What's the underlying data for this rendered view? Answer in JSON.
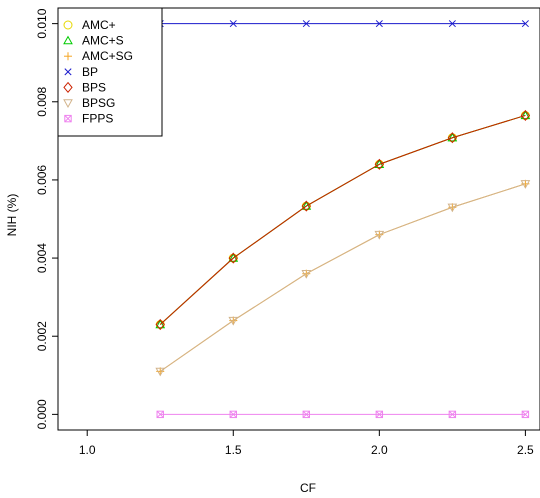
{
  "chart_data": {
    "type": "line",
    "xlabel": "CF",
    "ylabel": "NIH (%)",
    "xlim": [
      0.9,
      2.55
    ],
    "ylim": [
      -0.0004,
      0.0104
    ],
    "xticks": [
      "1.0",
      "1.5",
      "2.0",
      "2.5"
    ],
    "xtick_values": [
      1.0,
      1.5,
      2.0,
      2.5
    ],
    "yticks": [
      "0.000",
      "0.002",
      "0.004",
      "0.006",
      "0.008",
      "0.010"
    ],
    "ytick_values": [
      0.0,
      0.002,
      0.004,
      0.006,
      0.008,
      0.01
    ],
    "x": [
      1.25,
      1.5,
      1.75,
      2.0,
      2.25,
      2.5
    ],
    "legend_position": "top-left",
    "series": [
      {
        "name": "AMC+",
        "color": "#e6d800",
        "marker": "circle",
        "values": [
          0.0023,
          0.004,
          0.00533,
          0.0064,
          0.00708,
          0.00765
        ]
      },
      {
        "name": "AMC+S",
        "color": "#00cc00",
        "marker": "triangle-up",
        "values": [
          0.0023,
          0.004,
          0.00533,
          0.0064,
          0.00708,
          0.00765
        ]
      },
      {
        "name": "AMC+SG",
        "color": "#f5a623",
        "marker": "plus",
        "values": [
          0.0011,
          0.0024,
          0.0036,
          0.0046,
          0.0053,
          0.0059
        ]
      },
      {
        "name": "BP",
        "color": "#1a1acc",
        "marker": "x",
        "values": [
          0.01,
          0.01,
          0.01,
          0.01,
          0.01,
          0.01
        ]
      },
      {
        "name": "BPS",
        "color": "#cc2200",
        "marker": "diamond",
        "values": [
          0.0023,
          0.004,
          0.00533,
          0.0064,
          0.00708,
          0.00765
        ]
      },
      {
        "name": "BPSG",
        "color": "#d2b48c",
        "marker": "triangle-down",
        "values": [
          0.0011,
          0.0024,
          0.0036,
          0.0046,
          0.0053,
          0.0059
        ]
      },
      {
        "name": "FPPS",
        "color": "#ee82ee",
        "marker": "square-x",
        "values": [
          0.0,
          0.0,
          0.0,
          0.0,
          0.0,
          0.0
        ]
      }
    ]
  }
}
